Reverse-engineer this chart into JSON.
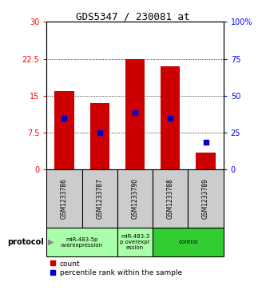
{
  "title": "GDS5347 / 230081_at",
  "samples": [
    "GSM1233786",
    "GSM1233787",
    "GSM1233790",
    "GSM1233788",
    "GSM1233789"
  ],
  "count_values": [
    16.0,
    13.5,
    22.5,
    21.0,
    3.5
  ],
  "percentile_values": [
    10.5,
    7.5,
    11.5,
    10.5,
    5.5
  ],
  "ylim_left": [
    0,
    30
  ],
  "ylim_right": [
    0,
    100
  ],
  "yticks_left": [
    0,
    7.5,
    15,
    22.5,
    30
  ],
  "yticks_right": [
    0,
    25,
    50,
    75,
    100
  ],
  "ytick_labels_left": [
    "0",
    "7.5",
    "15",
    "22.5",
    "30"
  ],
  "ytick_labels_right": [
    "0",
    "25",
    "50",
    "75",
    "100%"
  ],
  "bar_color": "#cc0000",
  "percentile_color": "#0000cc",
  "protocol_label": "protocol",
  "legend_count_label": "count",
  "legend_percentile_label": "percentile rank within the sample",
  "bar_width": 0.55,
  "groups": [
    {
      "label": "miR-483-5p\noverexpression",
      "start": 0,
      "end": 1,
      "color": "#aaffaa"
    },
    {
      "label": "miR-483-3\np overexpr\nession",
      "start": 2,
      "end": 2,
      "color": "#aaffaa"
    },
    {
      "label": "control",
      "start": 3,
      "end": 4,
      "color": "#33cc33"
    }
  ]
}
